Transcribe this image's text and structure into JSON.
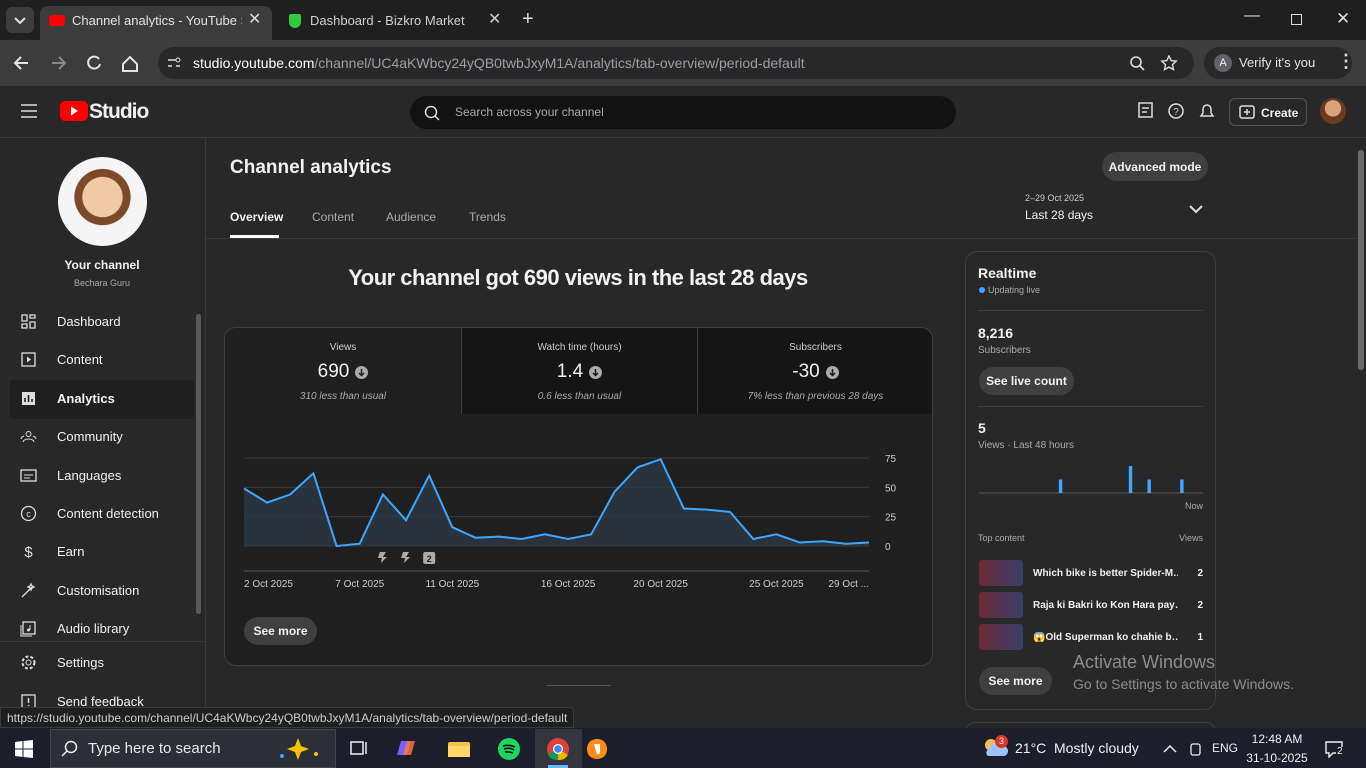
{
  "browser": {
    "tabs": [
      {
        "title": "Channel analytics - YouTube Stu"
      },
      {
        "title": "Dashboard - Bizkro Market"
      }
    ],
    "url_host": "studio.youtube.com",
    "url_path": "/channel/UC4aKWbcy24yQB0twbJxyM1A/analytics/tab-overview/period-default",
    "profile_initial": "A",
    "verify": "Verify it's you",
    "status_url": "https://studio.youtube.com/channel/UC4aKWbcy24yQB0twbJxyM1A/analytics/tab-overview/period-default"
  },
  "header": {
    "logo": "Studio",
    "search_placeholder": "Search across your channel",
    "create": "Create"
  },
  "sidebar": {
    "channel_label": "Your channel",
    "channel_name": "Bechara Guru",
    "nav": [
      "Dashboard",
      "Content",
      "Analytics",
      "Community",
      "Languages",
      "Content detection",
      "Earn",
      "Customisation",
      "Audio library"
    ],
    "settings": "Settings",
    "feedback": "Send feedback"
  },
  "page": {
    "title": "Channel analytics",
    "advanced": "Advanced mode",
    "tabs": [
      "Overview",
      "Content",
      "Audience",
      "Trends"
    ],
    "date_range": "2–29 Oct 2025",
    "period": "Last 28 days",
    "headline": "Your channel got 690 views in the last 28 days",
    "metrics": [
      {
        "label": "Views",
        "value": 690,
        "note": "310 less than usual"
      },
      {
        "label": "Watch time (hours)",
        "value": 1.4,
        "note": "0.6 less than usual"
      },
      {
        "label": "Subscribers",
        "value": -30,
        "note": "7% less than previous 28 days"
      }
    ],
    "see_more": "See more"
  },
  "chart": {
    "type": "line",
    "categories": [
      "2 Oct 2025",
      null,
      null,
      null,
      null,
      "7 Oct 2025",
      null,
      null,
      null,
      "11 Oct 2025",
      null,
      null,
      null,
      null,
      "16 Oct 2025",
      null,
      null,
      null,
      "20 Oct 2025",
      null,
      null,
      null,
      null,
      "25 Oct 2025",
      null,
      null,
      null,
      "29 Oct ..."
    ],
    "values": [
      49,
      37,
      44,
      62,
      0,
      2,
      44,
      22,
      60,
      16,
      7,
      8,
      6,
      10,
      6,
      10,
      46,
      67,
      74,
      32,
      31,
      29,
      6,
      10,
      3,
      4,
      2,
      3
    ],
    "ylim": [
      0,
      75
    ],
    "yticks": [
      0,
      25,
      50,
      75
    ],
    "color": "#3ea6ff",
    "grid": true,
    "upload_badge": 2
  },
  "realtime": {
    "title": "Realtime",
    "status": "Updating live",
    "subscribers": "8,216",
    "subscribers_label": "Subscribers",
    "live_count": "See live count",
    "views": 5,
    "views_label": "Views · Last 48 hours",
    "bars": [
      0,
      0,
      0,
      0,
      0,
      0,
      0,
      0,
      0,
      0,
      0,
      0,
      0,
      0,
      0,
      0,
      0,
      1,
      0,
      0,
      0,
      0,
      0,
      0,
      0,
      0,
      0,
      0,
      0,
      0,
      0,
      0,
      2,
      0,
      0,
      0,
      1,
      0,
      0,
      0,
      0,
      0,
      0,
      1,
      0,
      0,
      0,
      0
    ],
    "now": "Now",
    "top_content": "Top content",
    "views_col": "Views",
    "videos": [
      {
        "title": "Which bike is better Spider-M…",
        "views": 2
      },
      {
        "title": "Raja ki Bakri ko Kon Hara pay…",
        "views": 2
      },
      {
        "title": "😱Old Superman ko chahie b…",
        "views": 1
      }
    ],
    "see_more": "See more"
  },
  "watermark": {
    "title": "Activate Windows",
    "text": "Go to Settings to activate Windows."
  },
  "taskbar": {
    "search": "Type here to search",
    "weather_badge": 3,
    "temp": "21°C",
    "weather": "Mostly cloudy",
    "lang": "ENG",
    "time": "12:48 AM",
    "date": "31-10-2025",
    "notifications": 2
  }
}
